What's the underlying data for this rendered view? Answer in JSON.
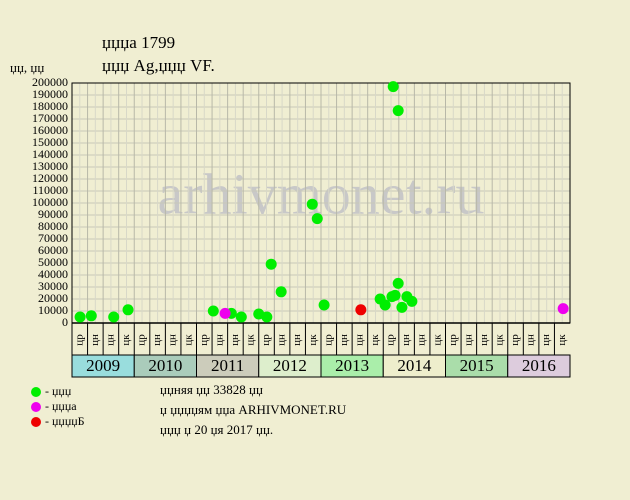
{
  "chart_data": {
    "type": "scatter",
    "title": "џџџа 1799",
    "subtitle": "џџџ Ag,џџџ VF.",
    "y_label": "џџ, џџ",
    "watermark": "arhivmonet.ru",
    "xlim": [
      2009,
      2017
    ],
    "xticks": [
      2009,
      2010,
      2011,
      2012,
      2013,
      2014,
      2015,
      2016
    ],
    "year_colors": [
      "#99dddd",
      "#aaccbb",
      "#ccccbb",
      "#ddeecc",
      "#aaeeaa",
      "#eeeecc",
      "#aaddaa",
      "#ddccdd"
    ],
    "quarter_labels": [
      "цр",
      "цн",
      "цн",
      "цк"
    ],
    "ylim": [
      0,
      200000
    ],
    "yticks": [
      0,
      10000,
      20000,
      30000,
      40000,
      50000,
      60000,
      70000,
      80000,
      90000,
      100000,
      110000,
      120000,
      130000,
      140000,
      150000,
      160000,
      170000,
      180000,
      190000,
      200000
    ],
    "grid": true,
    "series": [
      {
        "name": "- џџџ",
        "color": "#00ee00",
        "x": [
          2009.13,
          2009.31,
          2009.67,
          2009.9,
          2011.27,
          2011.56,
          2011.72,
          2012.0,
          2012.13,
          2012.2,
          2012.36,
          2012.86,
          2012.94,
          2013.05,
          2013.95,
          2014.03,
          2014.14,
          2014.16,
          2014.19,
          2014.24,
          2014.24,
          2014.3,
          2014.38,
          2014.46
        ],
        "values": [
          5000,
          6000,
          5000,
          11000,
          10000,
          8000,
          5000,
          7500,
          5000,
          49000,
          26000,
          99000,
          87000,
          15000,
          20000,
          15000,
          22000,
          197000,
          23000,
          33000,
          177000,
          13000,
          22000,
          18000
        ]
      },
      {
        "name": "- џџџа",
        "color": "#ee00ee",
        "x": [
          2011.46,
          2016.89
        ],
        "values": [
          8000,
          12000
        ]
      },
      {
        "name": "- џџџџБ",
        "color": "#ee0000",
        "x": [
          2013.64
        ],
        "values": [
          11000
        ]
      }
    ],
    "notes": [
      "џџняя џџ 33828 џџ",
      "џ џџџџям џџа ARHIVMONET.RU",
      "џџџ џ 20 џя 2017 џџ."
    ]
  }
}
